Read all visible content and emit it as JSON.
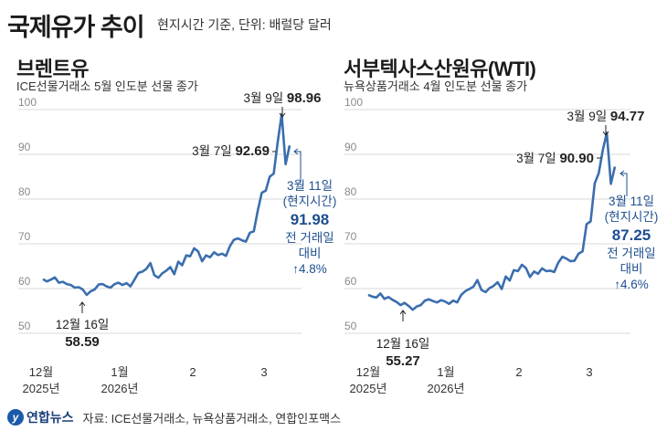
{
  "header": {
    "title": "국제유가 추이",
    "subtitle": "현지시간 기준, 단위: 배럴당 달러"
  },
  "footer": {
    "logo_mark": "y",
    "logo_text": "연합뉴스",
    "source": "자료: ICE선물거래소, 뉴욕상품거래소, 연합인포맥스"
  },
  "colors": {
    "line": "#3b6eae",
    "accent_text": "#1f4f8f",
    "grid": "#d9d9d9"
  },
  "chart_data": [
    {
      "type": "line",
      "title": "브렌트유",
      "subtitle": "ICE선물거래소 5월 인도분 선물 종가",
      "ylim": [
        50,
        100
      ],
      "yticks": [
        50,
        60,
        70,
        80,
        90,
        100
      ],
      "grid": true,
      "x_tick_labels": [
        {
          "label": "12월",
          "sub": "2025년"
        },
        {
          "label": "1월",
          "sub": "2026년"
        },
        {
          "label": "2",
          "sub": ""
        },
        {
          "label": "3",
          "sub": ""
        }
      ],
      "values": [
        62.1,
        61.6,
        62.0,
        62.5,
        61.3,
        61.5,
        61.0,
        60.8,
        60.2,
        60.3,
        59.8,
        58.59,
        59.4,
        59.8,
        60.9,
        61.0,
        60.5,
        60.2,
        61.0,
        61.3,
        60.8,
        61.2,
        60.5,
        62.0,
        63.5,
        63.8,
        64.4,
        65.7,
        63.0,
        62.4,
        63.4,
        64.0,
        64.8,
        63.2,
        66.0,
        65.2,
        67.4,
        67.2,
        69.0,
        68.3,
        66.1,
        67.4,
        67.0,
        68.1,
        67.5,
        67.8,
        67.3,
        69.5,
        70.9,
        71.2,
        70.8,
        70.5,
        72.5,
        72.8,
        77.5,
        81.4,
        81.9,
        85.0,
        85.7,
        92.69,
        98.96,
        87.8,
        91.98
      ],
      "annotations": [
        {
          "date": "3월 9일",
          "value": "98.96"
        },
        {
          "date": "3월 7일",
          "value": "92.69"
        },
        {
          "date": "12월 16일",
          "value": "58.59"
        },
        {
          "date": "3월 11일",
          "note": "(현지시간)",
          "value": "91.98",
          "change_label": "전 거래일",
          "change_label2": "대비",
          "change": "↑4.8%"
        }
      ]
    },
    {
      "type": "line",
      "title": "서부텍사스산원유(WTI)",
      "subtitle": "뉴욕상품거래소 4월 인도분 선물 종가",
      "ylim": [
        50,
        100
      ],
      "yticks": [
        50,
        60,
        70,
        80,
        90,
        100
      ],
      "grid": true,
      "x_tick_labels": [
        {
          "label": "12월",
          "sub": "2025년"
        },
        {
          "label": "1월",
          "sub": "2026년"
        },
        {
          "label": "2",
          "sub": ""
        },
        {
          "label": "3",
          "sub": ""
        }
      ],
      "values": [
        58.6,
        58.2,
        58.0,
        58.9,
        57.7,
        58.1,
        57.5,
        57.0,
        56.3,
        56.8,
        56.1,
        55.27,
        56.0,
        56.3,
        57.3,
        57.6,
        57.2,
        56.9,
        57.4,
        57.1,
        56.6,
        57.3,
        56.9,
        58.6,
        59.4,
        59.9,
        60.4,
        61.9,
        59.7,
        59.2,
        60.1,
        60.6,
        61.4,
        59.9,
        62.7,
        61.8,
        64.1,
        63.9,
        65.3,
        64.6,
        62.6,
        63.8,
        63.3,
        64.5,
        63.9,
        64.0,
        63.7,
        65.8,
        67.1,
        66.7,
        66.1,
        66.2,
        67.8,
        68.3,
        74.4,
        75.0,
        83.5,
        85.8,
        90.9,
        94.77,
        83.4,
        87.25
      ],
      "annotations": [
        {
          "date": "3월 9일",
          "value": "94.77"
        },
        {
          "date": "3월 7일",
          "value": "90.90"
        },
        {
          "date": "12월 16일",
          "value": "55.27"
        },
        {
          "date": "3월 11일",
          "note": "(현지시간)",
          "value": "87.25",
          "change_label": "전 거래일",
          "change_label2": "대비",
          "change": "↑4.6%"
        }
      ]
    }
  ]
}
